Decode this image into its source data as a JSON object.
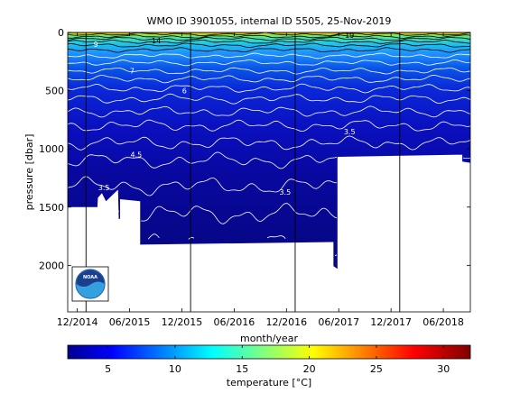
{
  "chart_data": {
    "type": "heatmap",
    "title": "WMO ID 3901055, internal ID 5505, 25-Nov-2019",
    "xlabel": "month/year",
    "ylabel": "pressure [dbar]",
    "x_tick_labels": [
      "12/2014",
      "06/2015",
      "12/2015",
      "06/2016",
      "12/2016",
      "06/2017",
      "12/2017",
      "06/2018"
    ],
    "y_tick_labels": [
      "0",
      "500",
      "1000",
      "1500",
      "2000"
    ],
    "y_ticks": [
      0,
      500,
      1000,
      1500,
      2000
    ],
    "ylim": [
      2400,
      0
    ],
    "colorbar": {
      "label": "temperature [°C]",
      "ticks": [
        5,
        10,
        15,
        20,
        25,
        30
      ],
      "tick_labels": [
        "5",
        "10",
        "15",
        "20",
        "25",
        "30"
      ],
      "range": [
        2,
        32
      ],
      "colormap": "jet"
    },
    "year_boundaries": [
      "01/2015",
      "01/2016",
      "01/2017",
      "01/2018"
    ],
    "contour_labels": [
      {
        "text": "14",
        "t": 0.22,
        "p": 70,
        "color": "#000000"
      },
      {
        "text": "19",
        "t": 0.7,
        "p": 25,
        "color": "#000000"
      },
      {
        "text": "9",
        "t": 0.07,
        "p": 100,
        "color": "#ffffff"
      },
      {
        "text": "7",
        "t": 0.16,
        "p": 330,
        "color": "#ffffff"
      },
      {
        "text": "6",
        "t": 0.29,
        "p": 500,
        "color": "#ffffff"
      },
      {
        "text": "4.5",
        "t": 0.17,
        "p": 1050,
        "color": "#ffffff"
      },
      {
        "text": "3.5",
        "t": 0.7,
        "p": 850,
        "color": "#ffffff"
      },
      {
        "text": "3.5",
        "t": 0.09,
        "p": 1330,
        "color": "#ffffff"
      },
      {
        "text": "3.5",
        "t": 0.54,
        "p": 1370,
        "color": "#ffffff"
      },
      {
        "text": "3",
        "t": 0.06,
        "p": 1570,
        "color": "#ffffff"
      }
    ],
    "colored_contour_levels_degC": [
      3,
      3.5,
      4,
      4.5,
      5,
      5.5,
      6,
      7,
      8,
      9
    ],
    "data_extent": [
      {
        "t": 0.0,
        "maxp": 1500
      },
      {
        "t": 0.12,
        "maxp": 1600
      },
      {
        "t": 0.13,
        "maxp": 1450
      },
      {
        "t": 0.18,
        "maxp": 1800
      },
      {
        "t": 0.66,
        "maxp": 2030
      },
      {
        "t": 0.67,
        "maxp": 1050
      },
      {
        "t": 0.98,
        "maxp": 1120
      },
      {
        "t": 1.0,
        "maxp": 1200
      }
    ],
    "logo": "noaa-logo"
  }
}
